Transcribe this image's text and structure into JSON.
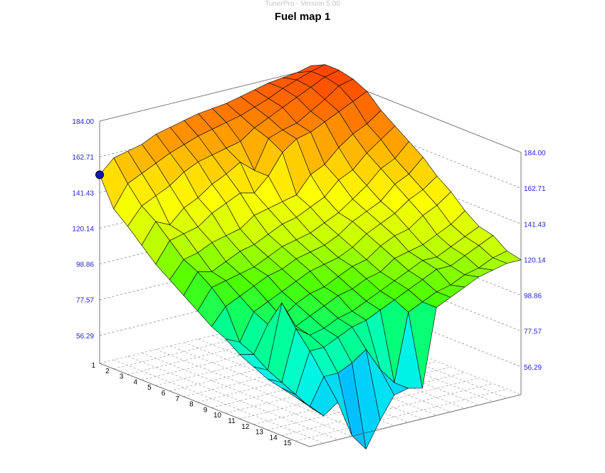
{
  "app": {
    "title": "TunerPro - Version 5.00"
  },
  "chart_data": {
    "type": "surface3d",
    "title": "Fuel map 1",
    "xlabel": "",
    "ylabel": "",
    "zlabel": "",
    "x_ticks": [
      "1",
      "2",
      "3",
      "4",
      "5",
      "6",
      "7",
      "8",
      "9",
      "10",
      "11",
      "12",
      "13",
      "14",
      "15"
    ],
    "z_ticks": [
      "56.29",
      "77.57",
      "98.86",
      "120.14",
      "141.43",
      "162.71",
      "184.00"
    ],
    "zlim": [
      56.29,
      184.0
    ],
    "grid": true,
    "selected_cell": {
      "row": 1,
      "col": 1,
      "value": 152
    },
    "colormap": [
      "#1a4cff",
      "#00c8ff",
      "#00ffe0",
      "#00ff80",
      "#4cff00",
      "#c8ff00",
      "#ffff00",
      "#ffc000",
      "#ff7800",
      "#ff4400"
    ],
    "rows": [
      [
        152,
        160,
        162,
        164,
        168,
        170,
        172,
        174,
        175,
        176,
        178,
        180,
        182,
        183,
        184,
        186
      ],
      [
        135,
        148,
        152,
        156,
        160,
        163,
        166,
        168,
        170,
        172,
        175,
        178,
        182,
        185,
        188,
        190
      ],
      [
        128,
        138,
        142,
        146,
        152,
        156,
        158,
        160,
        162,
        168,
        172,
        176,
        180,
        184,
        188,
        190
      ],
      [
        120,
        132,
        128,
        136,
        140,
        146,
        150,
        155,
        148,
        165,
        168,
        170,
        175,
        180,
        186,
        188
      ],
      [
        112,
        124,
        126,
        128,
        134,
        138,
        142,
        140,
        148,
        160,
        166,
        168,
        172,
        176,
        180,
        184
      ],
      [
        106,
        116,
        118,
        122,
        124,
        126,
        132,
        134,
        136,
        138,
        148,
        152,
        160,
        166,
        170,
        176
      ],
      [
        100,
        112,
        110,
        114,
        118,
        120,
        124,
        128,
        130,
        134,
        138,
        146,
        150,
        158,
        164,
        170
      ],
      [
        94,
        106,
        108,
        110,
        112,
        116,
        120,
        122,
        124,
        128,
        132,
        138,
        144,
        152,
        156,
        164
      ],
      [
        88,
        98,
        102,
        106,
        110,
        112,
        116,
        118,
        120,
        124,
        130,
        134,
        138,
        146,
        150,
        158
      ],
      [
        84,
        80,
        96,
        100,
        104,
        108,
        112,
        114,
        116,
        120,
        126,
        130,
        134,
        140,
        144,
        150
      ],
      [
        78,
        76,
        92,
        94,
        100,
        104,
        106,
        110,
        114,
        116,
        122,
        126,
        128,
        134,
        138,
        144
      ],
      [
        74,
        70,
        108,
        92,
        96,
        100,
        104,
        106,
        110,
        112,
        118,
        120,
        122,
        126,
        130,
        136
      ],
      [
        70,
        66,
        96,
        90,
        92,
        96,
        98,
        102,
        106,
        110,
        114,
        118,
        118,
        122,
        126,
        130
      ],
      [
        68,
        62,
        86,
        86,
        90,
        94,
        96,
        100,
        104,
        108,
        112,
        116,
        116,
        120,
        124,
        128
      ],
      [
        66,
        58,
        74,
        74,
        78,
        84,
        70,
        60,
        100,
        104,
        108,
        110,
        114,
        116,
        120,
        122
      ],
      [
        64,
        56,
        62,
        40,
        30,
        45,
        58,
        60,
        58,
        104,
        108,
        112,
        116,
        118,
        120,
        120
      ]
    ]
  }
}
